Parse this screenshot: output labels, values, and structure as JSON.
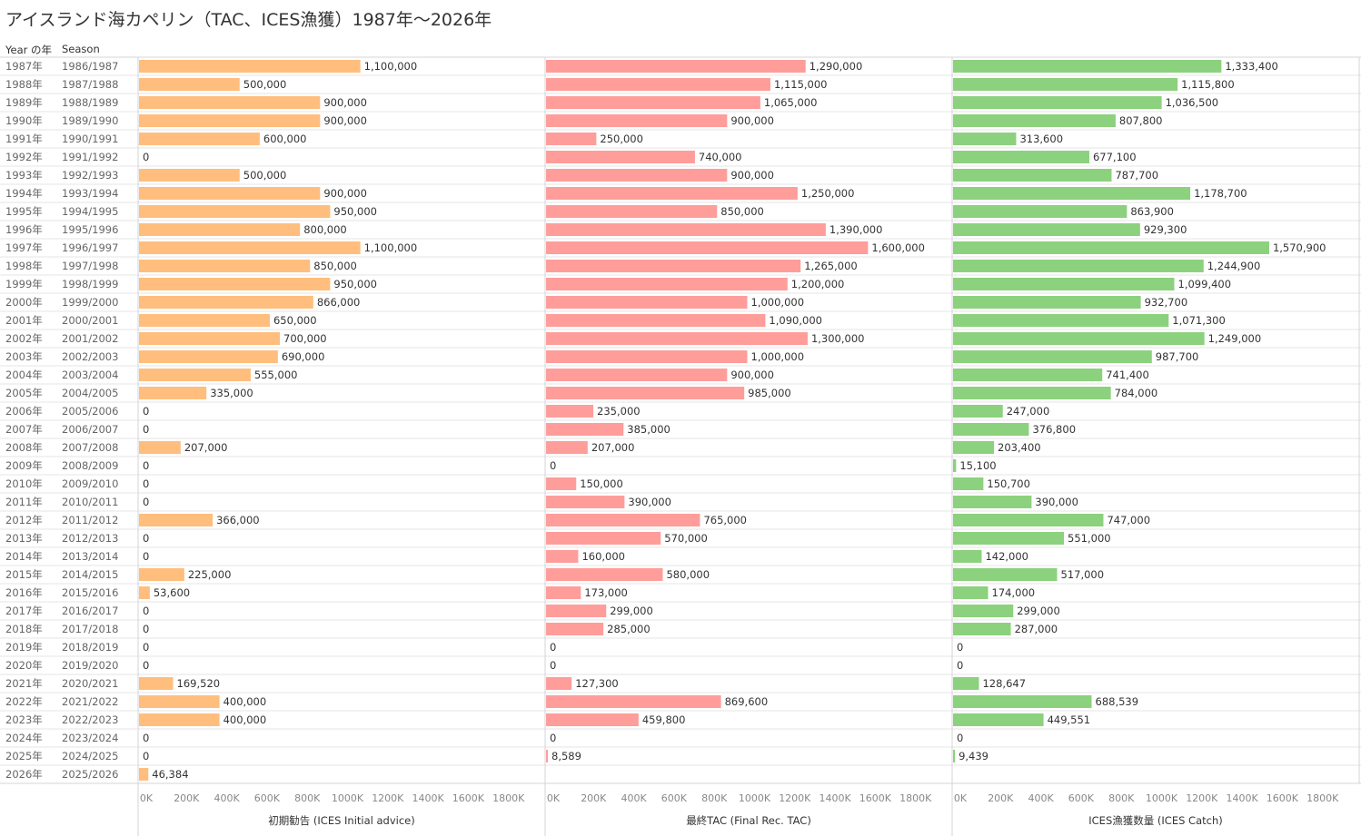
{
  "title": "アイスランド海カペリン（TAC、ICES漁獲）1987年～2026年",
  "headers": {
    "year": "Year の年",
    "season": "Season"
  },
  "colors": {
    "advice": "#ffbe7d",
    "tac": "#ff9d9a",
    "catch": "#8cd17d"
  },
  "chart_data": {
    "type": "bar",
    "orientation": "horizontal",
    "years": [
      "1987年",
      "1988年",
      "1989年",
      "1990年",
      "1991年",
      "1992年",
      "1993年",
      "1994年",
      "1995年",
      "1996年",
      "1997年",
      "1998年",
      "1999年",
      "2000年",
      "2001年",
      "2002年",
      "2003年",
      "2004年",
      "2005年",
      "2006年",
      "2007年",
      "2008年",
      "2009年",
      "2010年",
      "2011年",
      "2012年",
      "2013年",
      "2014年",
      "2015年",
      "2016年",
      "2017年",
      "2018年",
      "2019年",
      "2020年",
      "2021年",
      "2022年",
      "2023年",
      "2024年",
      "2025年",
      "2026年"
    ],
    "seasons": [
      "1986/1987",
      "1987/1988",
      "1988/1989",
      "1989/1990",
      "1990/1991",
      "1991/1992",
      "1992/1993",
      "1993/1994",
      "1994/1995",
      "1995/1996",
      "1996/1997",
      "1997/1998",
      "1998/1999",
      "1999/2000",
      "2000/2001",
      "2001/2002",
      "2002/2003",
      "2003/2004",
      "2004/2005",
      "2005/2006",
      "2006/2007",
      "2007/2008",
      "2008/2009",
      "2009/2010",
      "2010/2011",
      "2011/2012",
      "2012/2013",
      "2013/2014",
      "2014/2015",
      "2015/2016",
      "2016/2017",
      "2017/2018",
      "2018/2019",
      "2019/2020",
      "2020/2021",
      "2021/2022",
      "2022/2023",
      "2023/2024",
      "2024/2025",
      "2025/2026"
    ],
    "xticks": [
      "0K",
      "200K",
      "400K",
      "600K",
      "800K",
      "1000K",
      "1200K",
      "1400K",
      "1600K",
      "1800K"
    ],
    "xlim": [
      0,
      1800000
    ],
    "series": [
      {
        "name": "初期勧告 (ICES Initial advice)",
        "color": "#ffbe7d",
        "values": [
          1100000,
          500000,
          900000,
          900000,
          600000,
          0,
          500000,
          900000,
          950000,
          800000,
          1100000,
          850000,
          950000,
          866000,
          650000,
          700000,
          690000,
          555000,
          335000,
          0,
          0,
          207000,
          0,
          0,
          0,
          366000,
          0,
          0,
          225000,
          53600,
          0,
          0,
          0,
          0,
          169520,
          400000,
          400000,
          0,
          0,
          46384
        ]
      },
      {
        "name": "最終TAC (Final Rec. TAC)",
        "color": "#ff9d9a",
        "values": [
          1290000,
          1115000,
          1065000,
          900000,
          250000,
          740000,
          900000,
          1250000,
          850000,
          1390000,
          1600000,
          1265000,
          1200000,
          1000000,
          1090000,
          1300000,
          1000000,
          900000,
          985000,
          235000,
          385000,
          207000,
          0,
          150000,
          390000,
          765000,
          570000,
          160000,
          580000,
          173000,
          299000,
          285000,
          0,
          0,
          127300,
          869600,
          459800,
          0,
          8589,
          null
        ]
      },
      {
        "name": "ICES漁獲数量 (ICES Catch)",
        "color": "#8cd17d",
        "values": [
          1333400,
          1115800,
          1036500,
          807800,
          313600,
          677100,
          787700,
          1178700,
          863900,
          929300,
          1570900,
          1244900,
          1099400,
          932700,
          1071300,
          1249000,
          987700,
          741400,
          784000,
          247000,
          376800,
          203400,
          15100,
          150700,
          390000,
          747000,
          551000,
          142000,
          517000,
          174000,
          299000,
          287000,
          0,
          0,
          128647,
          688539,
          449551,
          0,
          9439,
          null
        ]
      }
    ]
  }
}
